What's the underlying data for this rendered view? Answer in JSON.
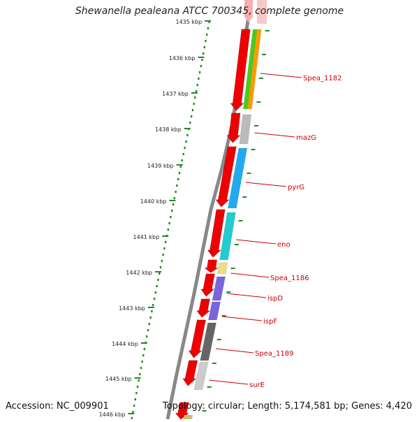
{
  "title": "Shewanella pealeana ATCC 700345, complete genome",
  "accession": "Accession: NC_009901",
  "info": "Topology: circular; Length: 5,174,581 bp; Genes: 4,420",
  "colors": {
    "cds": "#ee0000",
    "gene_label": "#cc0000",
    "backbone": "#888888",
    "ruler": "#228b22",
    "ruler_text": "#222222"
  },
  "ruler": {
    "ticks": [
      "1435 kbp",
      "1436 kbp",
      "1437 kbp",
      "1438 kbp",
      "1439 kbp",
      "1440 kbp",
      "1441 kbp",
      "1442 kbp",
      "1443 kbp",
      "1444 kbp",
      "1445 kbp",
      "1446 kbp"
    ]
  },
  "gene_labels": [
    "Spea_1182",
    "mazG",
    "pyrG",
    "eno",
    "Spea_1186",
    "ispD",
    "ispF",
    "Spea_1189",
    "surE"
  ],
  "feature_colors": [
    "#ff9900",
    "#44cc22",
    "#bbbbbb",
    "#22aaee",
    "#22cccc",
    "#eedd88",
    "#7766dd",
    "#7766dd",
    "#666666",
    "#cccccc"
  ]
}
